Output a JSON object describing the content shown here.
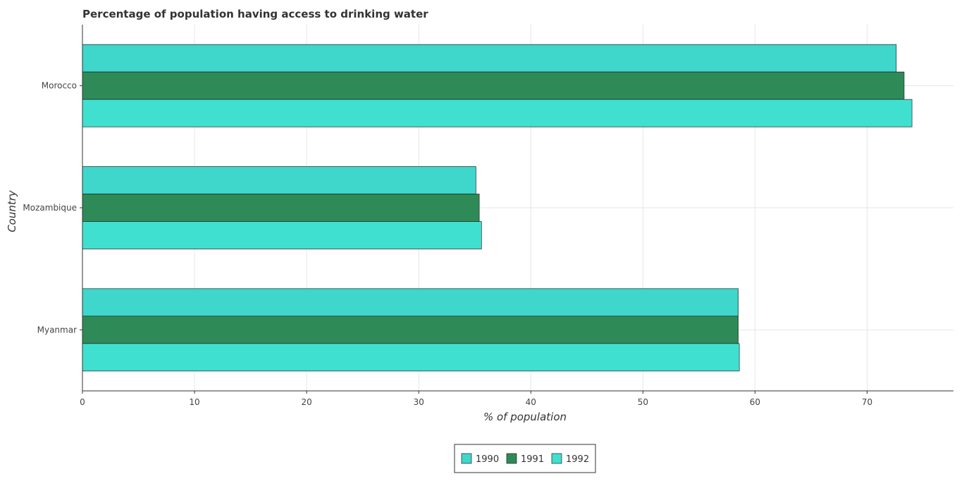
{
  "chart_data": {
    "type": "bar",
    "orientation": "horizontal",
    "title": "Percentage of population having access to drinking water",
    "xlabel": "% of population",
    "ylabel": "Country",
    "categories": [
      "Morocco",
      "Mozambique",
      "Myanmar"
    ],
    "series": [
      {
        "name": "1990",
        "color": "#3fd6cc",
        "values": [
          72.6,
          35.1,
          58.5
        ]
      },
      {
        "name": "1991",
        "color": "#2e8b57",
        "values": [
          73.3,
          35.4,
          58.5
        ]
      },
      {
        "name": "1992",
        "color": "#40e0d0",
        "values": [
          74.0,
          35.6,
          58.6
        ]
      }
    ],
    "xlim": [
      0,
      77.7
    ],
    "xticks": [
      0,
      10,
      20,
      30,
      40,
      50,
      60,
      70
    ],
    "grid": true,
    "legend_position": "bottom-center"
  }
}
